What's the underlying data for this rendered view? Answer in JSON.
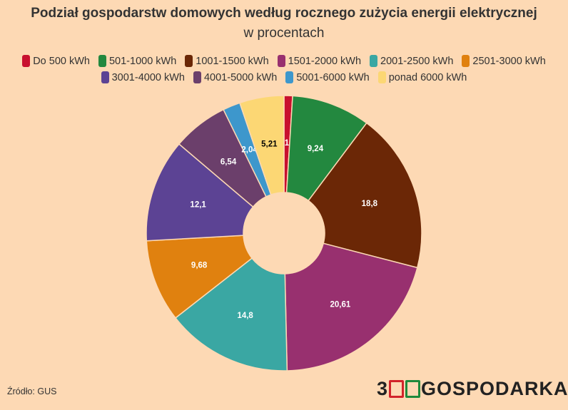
{
  "chart_data": {
    "type": "pie",
    "title": "Podział gospodarstw domowych według rocznego zużycia energii elektrycznej",
    "subtitle": "w procentach",
    "legend_position": "top",
    "donut": true,
    "categories": [
      "Do 500 kWh",
      "501-1000 kWh",
      "1001-1500 kWh",
      "1501-2000 kWh",
      "2001-2500 kWh",
      "2501-3000 kWh",
      "3001-4000 kWh",
      "4001-5000 kWh",
      "5001-6000 kWh",
      "ponad 6000 kWh"
    ],
    "values": [
      1,
      9.24,
      18.8,
      20.61,
      14.8,
      9.68,
      12.1,
      6.54,
      2.04,
      5.21
    ],
    "data_labels": [
      "1",
      "9,24",
      "18,8",
      "20,61",
      "14,8",
      "9,68",
      "12,1",
      "6,54",
      "2,04",
      "5,21"
    ],
    "colors": [
      "#c8102e",
      "#23883f",
      "#6b2706",
      "#98306f",
      "#3aa7a3",
      "#e0810f",
      "#5c4394",
      "#6b3f6b",
      "#3d97cc",
      "#fcd774"
    ]
  },
  "source": "Źródło: GUS",
  "logo": {
    "part1": "3",
    "part2": "GOSPODARKA"
  }
}
